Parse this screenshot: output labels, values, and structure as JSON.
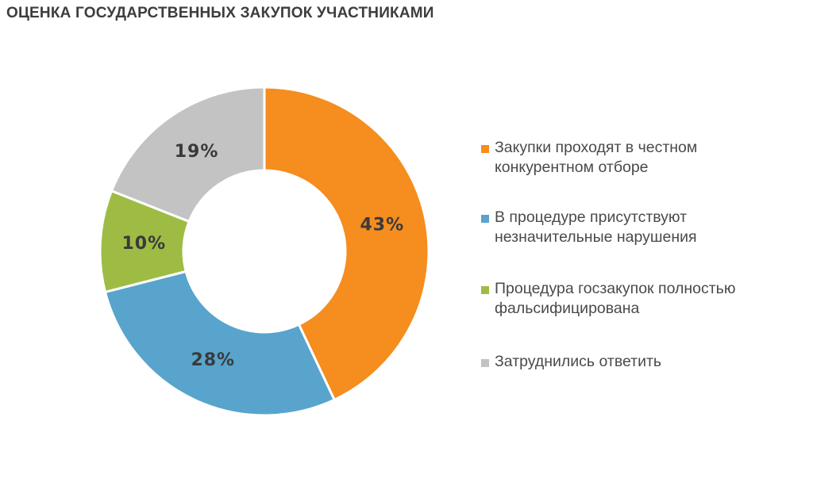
{
  "title": "ОЦЕНКА ГОСУДАРСТВЕННЫХ ЗАКУПОК УЧАСТНИКАМИ",
  "chart_data": {
    "type": "pie",
    "donut": true,
    "legend_position": "right",
    "slices": [
      {
        "label": "Закупки проходят в честном конкурентном отборе",
        "value": 43,
        "value_label": "43%",
        "color": "#f58d1f"
      },
      {
        "label": "В процедуре присутствуют незначительные нарушения",
        "value": 28,
        "value_label": "28%",
        "color": "#58a4cc"
      },
      {
        "label": "Процедура госзакупок полностью фальсифицирована",
        "value": 10,
        "value_label": "10%",
        "color": "#9ebc44"
      },
      {
        "label": "Затруднились ответить",
        "value": 19,
        "value_label": "19%",
        "color": "#c3c3c3"
      }
    ]
  }
}
